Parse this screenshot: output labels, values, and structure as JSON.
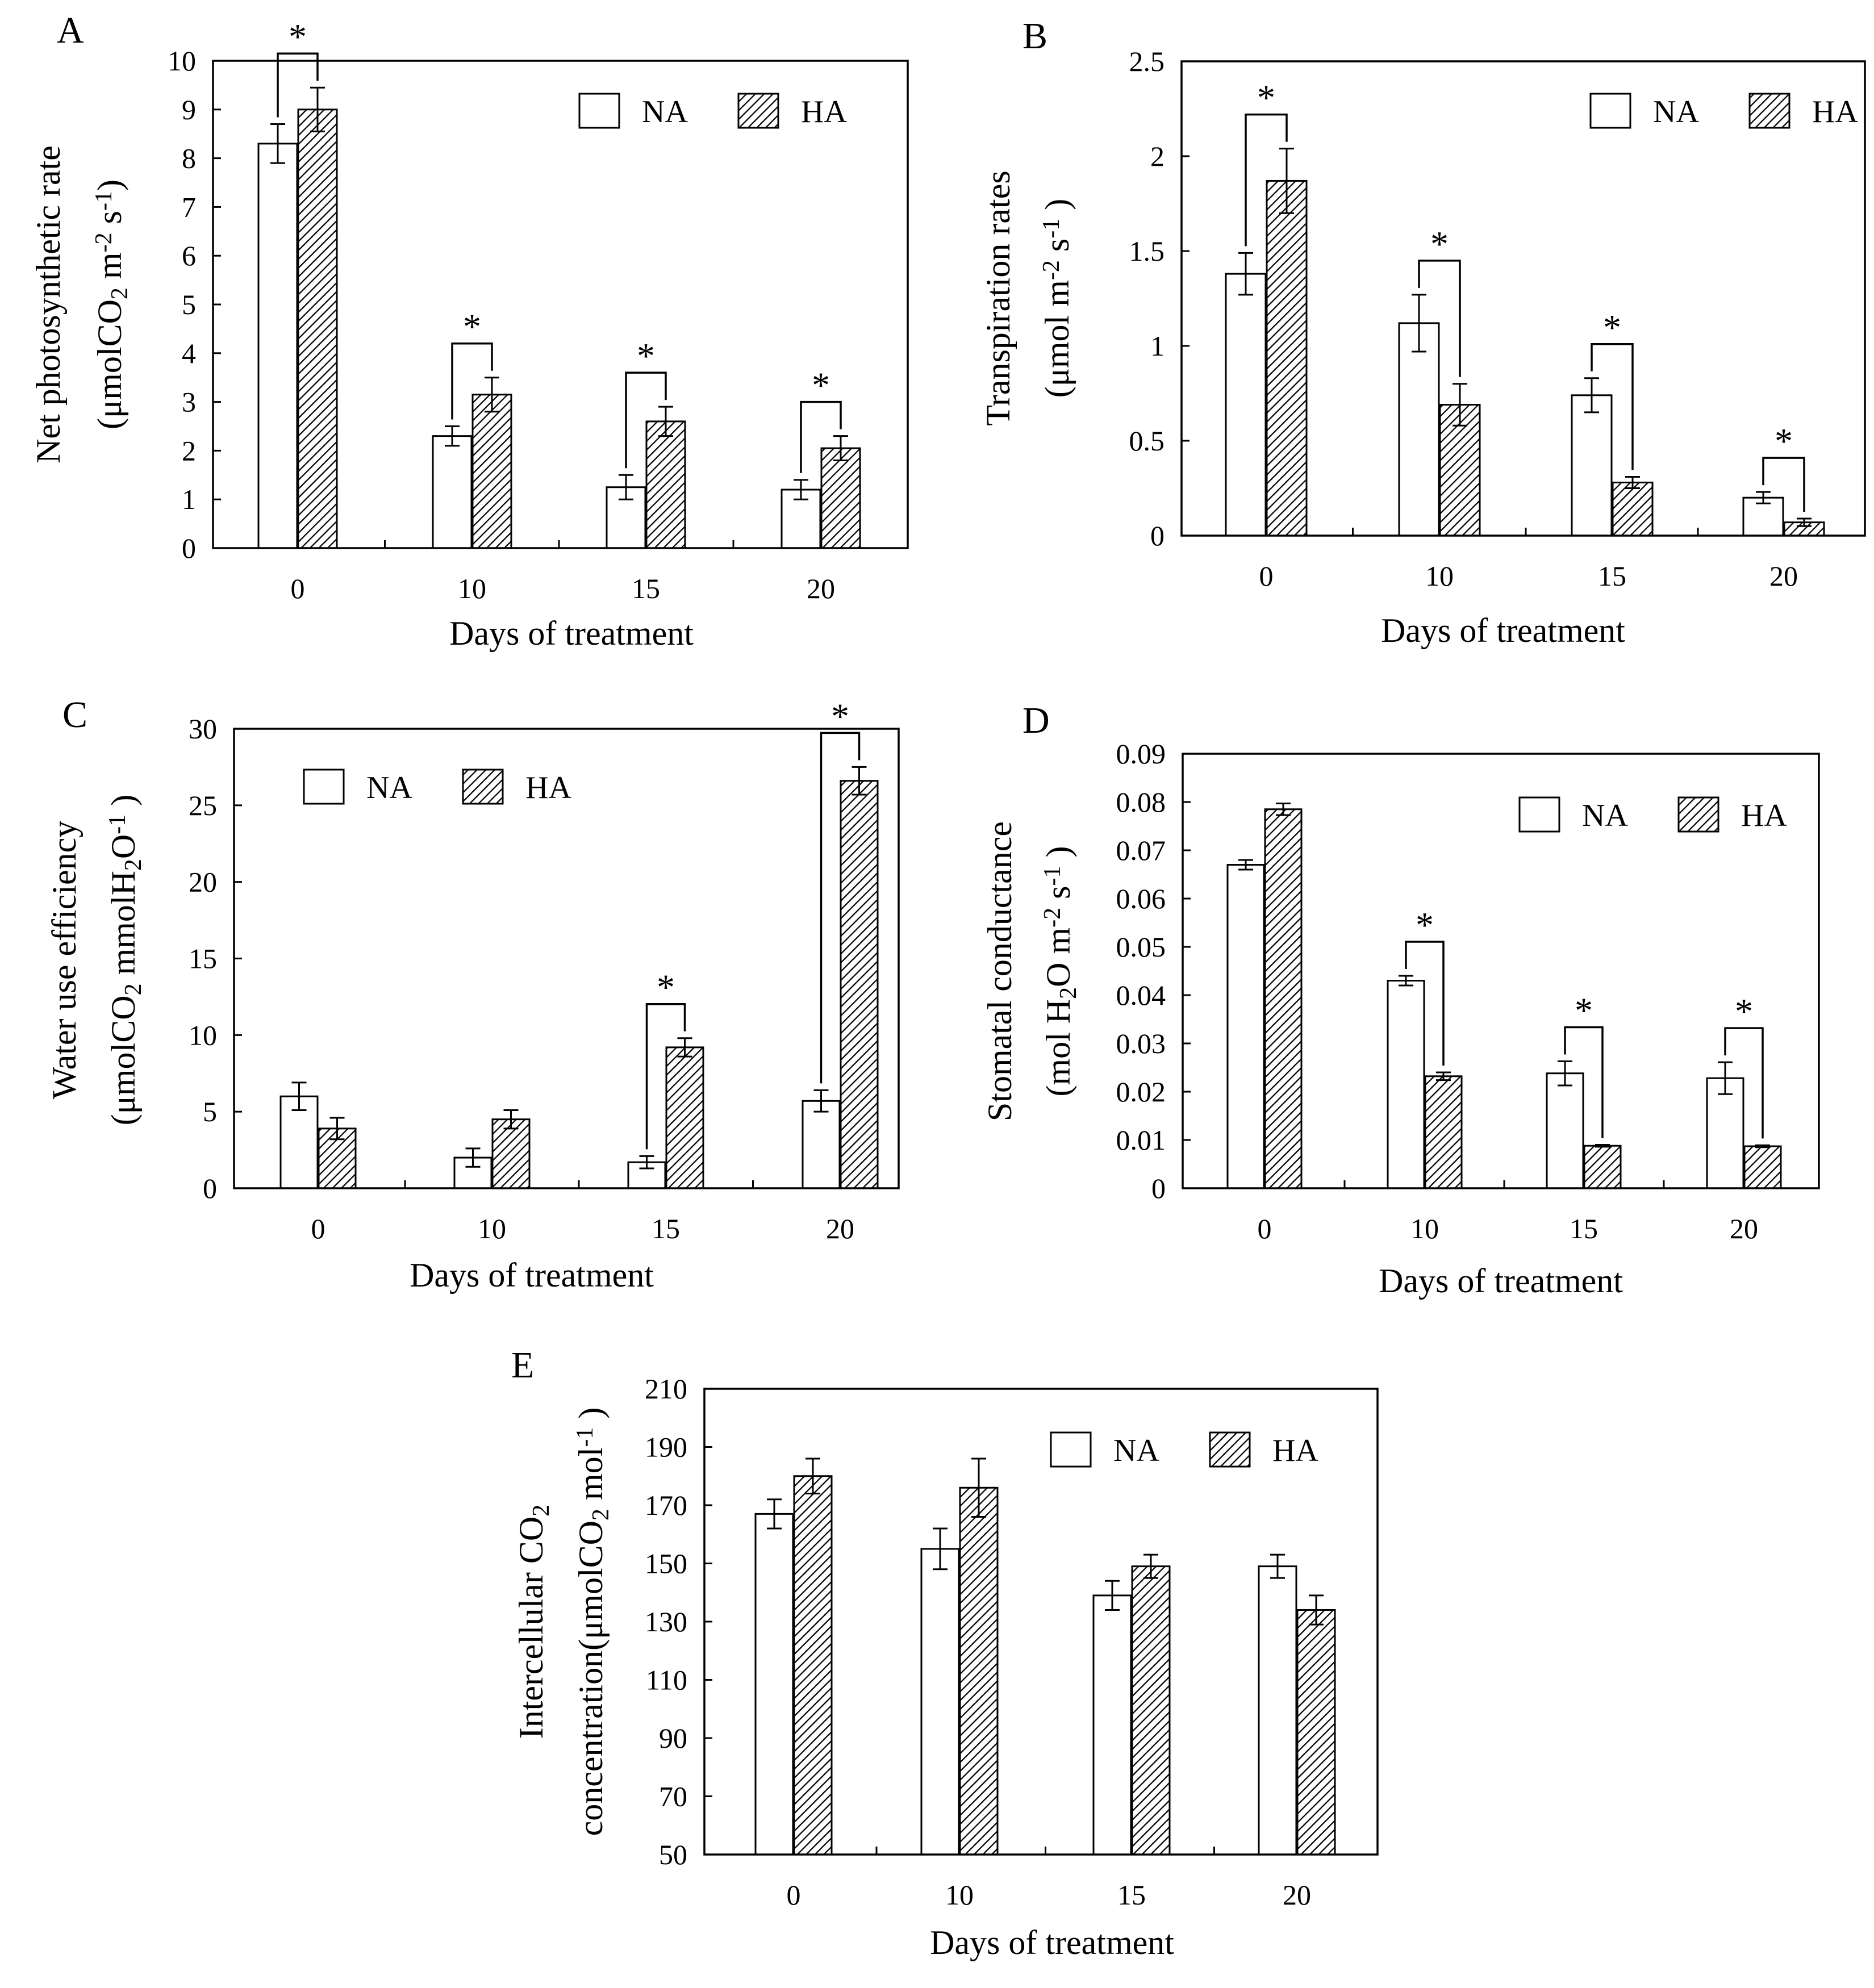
{
  "figure": {
    "legend": {
      "na_label": "NA",
      "ha_label": "HA"
    },
    "colors": {
      "na_fill": "#ffffff",
      "ha_hatch": "#000000",
      "axis": "#000000",
      "background": "#ffffff"
    }
  },
  "chart_data": [
    {
      "type": "bar",
      "panel": "A",
      "categories": [
        "0",
        "10",
        "15",
        "20"
      ],
      "series": [
        {
          "name": "NA",
          "values": [
            8.3,
            2.3,
            1.25,
            1.2
          ],
          "errors": [
            0.4,
            0.2,
            0.25,
            0.2
          ]
        },
        {
          "name": "HA",
          "values": [
            9.0,
            3.15,
            2.6,
            2.05
          ],
          "errors": [
            0.45,
            0.35,
            0.3,
            0.25
          ]
        }
      ],
      "significance": [
        "*",
        "*",
        "*",
        "*"
      ],
      "xlabel": "Days of treatment",
      "ylabel": "Net photosynthetic rate",
      "ylabel2": "(μmolCO2 m-2 s-1)",
      "ylim": [
        0,
        10
      ],
      "yticks": [
        "0",
        "1",
        "2",
        "3",
        "4",
        "5",
        "6",
        "7",
        "8",
        "9",
        "10"
      ],
      "legend": "top-right",
      "grid": false
    },
    {
      "type": "bar",
      "panel": "B",
      "categories": [
        "0",
        "10",
        "15",
        "20"
      ],
      "series": [
        {
          "name": "NA",
          "values": [
            1.38,
            1.12,
            0.74,
            0.2
          ],
          "errors": [
            0.11,
            0.15,
            0.09,
            0.03
          ]
        },
        {
          "name": "HA",
          "values": [
            1.87,
            0.69,
            0.28,
            0.07
          ],
          "errors": [
            0.17,
            0.11,
            0.03,
            0.02
          ]
        }
      ],
      "significance": [
        "*",
        "*",
        "*",
        "*"
      ],
      "xlabel": "Days of treatment",
      "ylabel": "Transpiration rates",
      "ylabel2": "(μmol m-2 s-1 )",
      "ylim": [
        0,
        2.5
      ],
      "yticks": [
        "0",
        "0.5",
        "1",
        "1.5",
        "2",
        "2.5"
      ],
      "legend": "top-right",
      "grid": false
    },
    {
      "type": "bar",
      "panel": "C",
      "categories": [
        "0",
        "10",
        "15",
        "20"
      ],
      "series": [
        {
          "name": "NA",
          "values": [
            6.0,
            2.0,
            1.7,
            5.7
          ],
          "errors": [
            0.9,
            0.6,
            0.4,
            0.7
          ]
        },
        {
          "name": "HA",
          "values": [
            3.9,
            4.5,
            9.2,
            26.6
          ],
          "errors": [
            0.7,
            0.6,
            0.6,
            0.9
          ]
        }
      ],
      "significance": [
        "",
        "",
        "*",
        "*"
      ],
      "xlabel": "Days of treatment",
      "ylabel": "Water use efficiency",
      "ylabel2": "(μmolCO2 mmolH2O-1 )",
      "ylim": [
        0,
        30
      ],
      "yticks": [
        "0",
        "5",
        "10",
        "15",
        "20",
        "25",
        "30"
      ],
      "legend": "top-left",
      "grid": false
    },
    {
      "type": "bar",
      "panel": "D",
      "categories": [
        "0",
        "10",
        "15",
        "20"
      ],
      "series": [
        {
          "name": "NA",
          "values": [
            0.067,
            0.043,
            0.0238,
            0.0228
          ],
          "errors": [
            0.001,
            0.001,
            0.0025,
            0.0033
          ]
        },
        {
          "name": "HA",
          "values": [
            0.0785,
            0.0232,
            0.0088,
            0.0087
          ],
          "errors": [
            0.0012,
            0.0008,
            0.0002,
            0.0002
          ]
        }
      ],
      "significance": [
        "",
        "*",
        "*",
        "*"
      ],
      "xlabel": "Days of treatment",
      "ylabel": "Stomatal conductance",
      "ylabel2": "(mol H2O m-2 s-1 )",
      "ylim": [
        0,
        0.09
      ],
      "yticks": [
        "0",
        "0.01",
        "0.02",
        "0.03",
        "0.04",
        "0.05",
        "0.06",
        "0.07",
        "0.08",
        "0.09"
      ],
      "legend": "top-right",
      "grid": false
    },
    {
      "type": "bar",
      "panel": "E",
      "categories": [
        "0",
        "10",
        "15",
        "20"
      ],
      "series": [
        {
          "name": "NA",
          "values": [
            167,
            155,
            139,
            149
          ],
          "errors": [
            5,
            7,
            5,
            4
          ]
        },
        {
          "name": "HA",
          "values": [
            180,
            176,
            149,
            134
          ],
          "errors": [
            6,
            10,
            4,
            5
          ]
        }
      ],
      "significance": [
        "",
        "",
        "",
        ""
      ],
      "xlabel": "Days of treatment",
      "ylabel": "Intercellular CO2",
      "ylabel2": "concentration(μmolCO2 mol-1 )",
      "ylim": [
        50,
        210
      ],
      "yticks": [
        "50",
        "70",
        "90",
        "110",
        "130",
        "150",
        "170",
        "190",
        "210"
      ],
      "legend": "top-right",
      "grid": false
    }
  ]
}
